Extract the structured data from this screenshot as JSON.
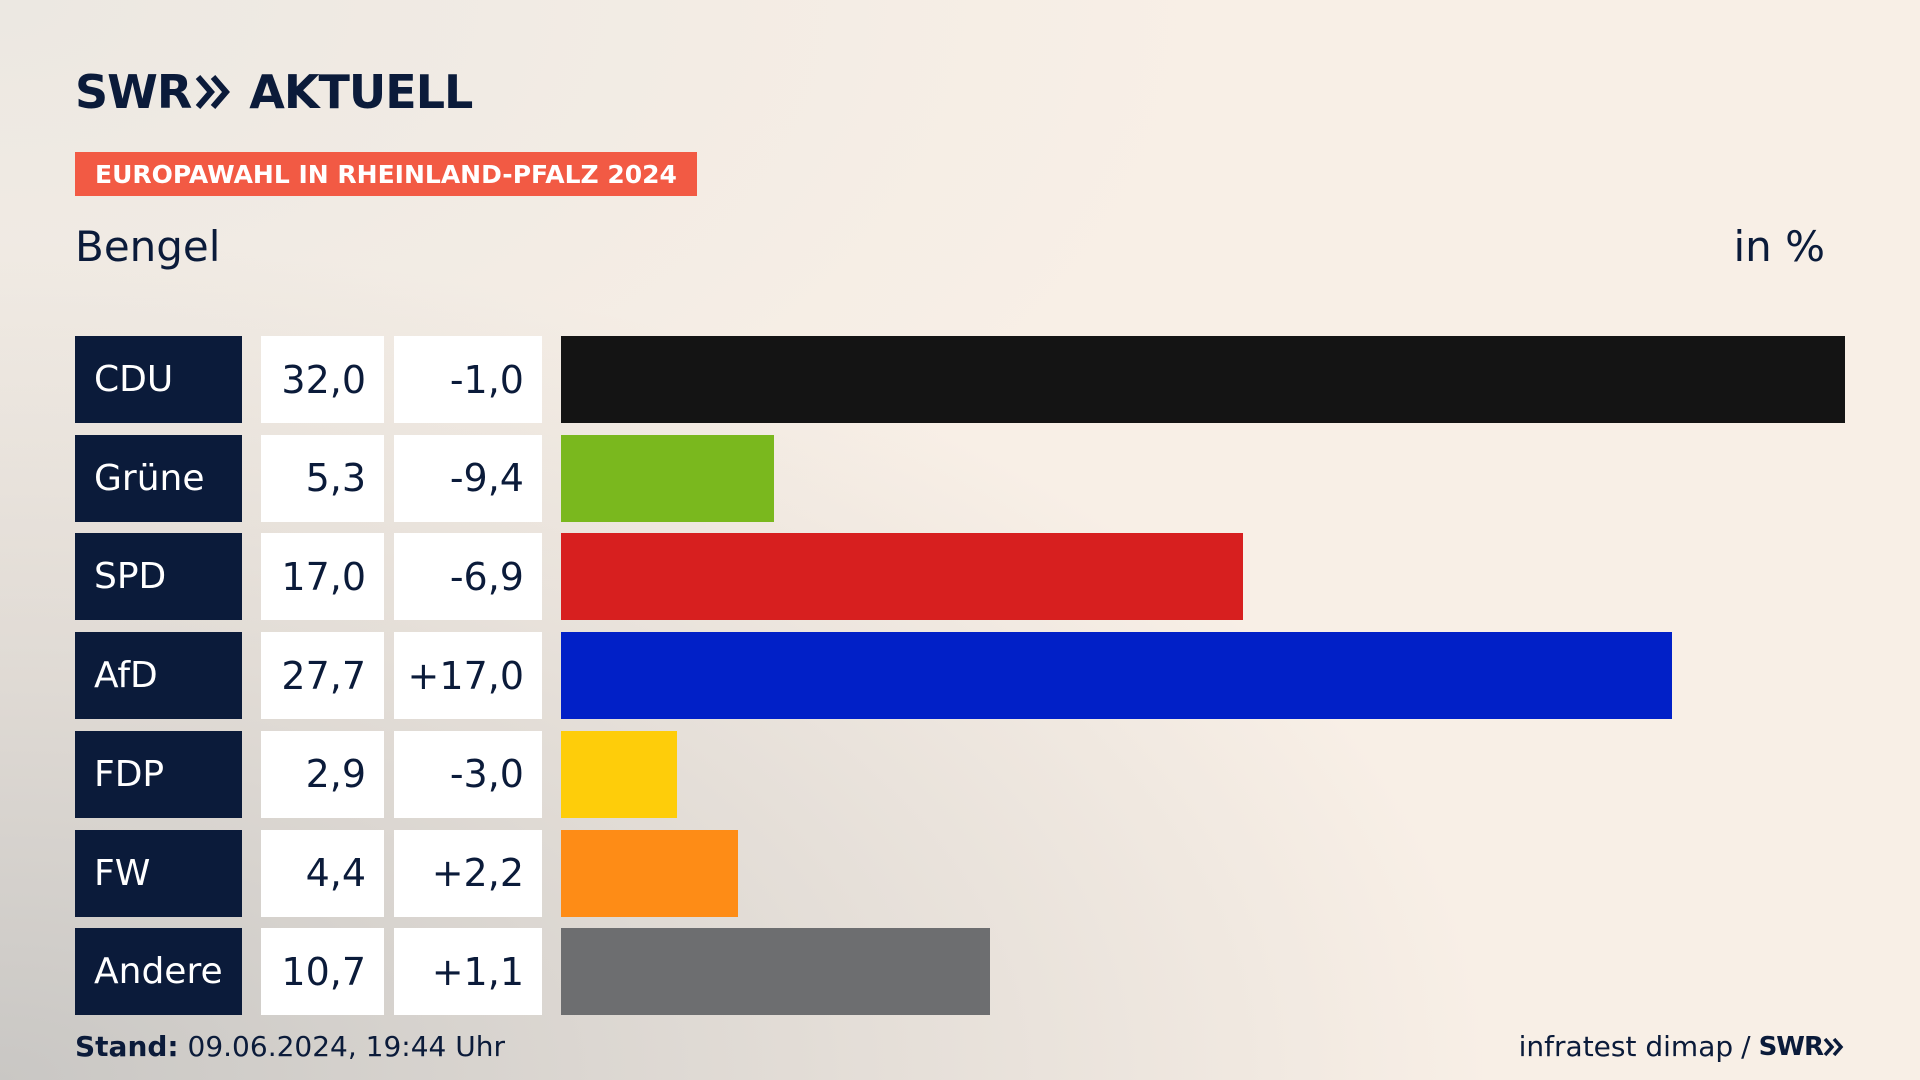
{
  "brand": {
    "logo_text": "SWR",
    "section_text": "AKTUELL",
    "icon": "double-chevron-right-icon"
  },
  "badge": "EUROPAWAHL IN RHEINLAND-PFALZ 2024",
  "region": "Bengel",
  "unit": "in %",
  "chart_data": {
    "type": "bar",
    "orientation": "horizontal",
    "title": "EUROPAWAHL IN RHEINLAND-PFALZ 2024",
    "subtitle": "Bengel",
    "unit_label": "in %",
    "categories": [
      "CDU",
      "Grüne",
      "SPD",
      "AfD",
      "FDP",
      "FW",
      "Andere"
    ],
    "values": [
      32.0,
      5.3,
      17.0,
      27.7,
      2.9,
      4.4,
      10.7
    ],
    "value_labels": [
      "32,0",
      "5,3",
      "17,0",
      "27,7",
      "2,9",
      "4,4",
      "10,7"
    ],
    "change_labels": [
      "-1,0",
      "-9,4",
      "-6,9",
      "+17,0",
      "-3,0",
      "+2,2",
      "+1,1"
    ],
    "colors": [
      "#141414",
      "#7ab81e",
      "#d71f1f",
      "#0120c7",
      "#fecd0a",
      "#fe8c16",
      "#6d6e70"
    ],
    "xlim": [
      0,
      32.0
    ],
    "grid": false,
    "legend": "none"
  },
  "footer": {
    "stand_label": "Stand:",
    "stand_value": "09.06.2024, 19:44 Uhr",
    "source": "infratest dimap",
    "separator": "/",
    "source_logo": "SWR"
  }
}
